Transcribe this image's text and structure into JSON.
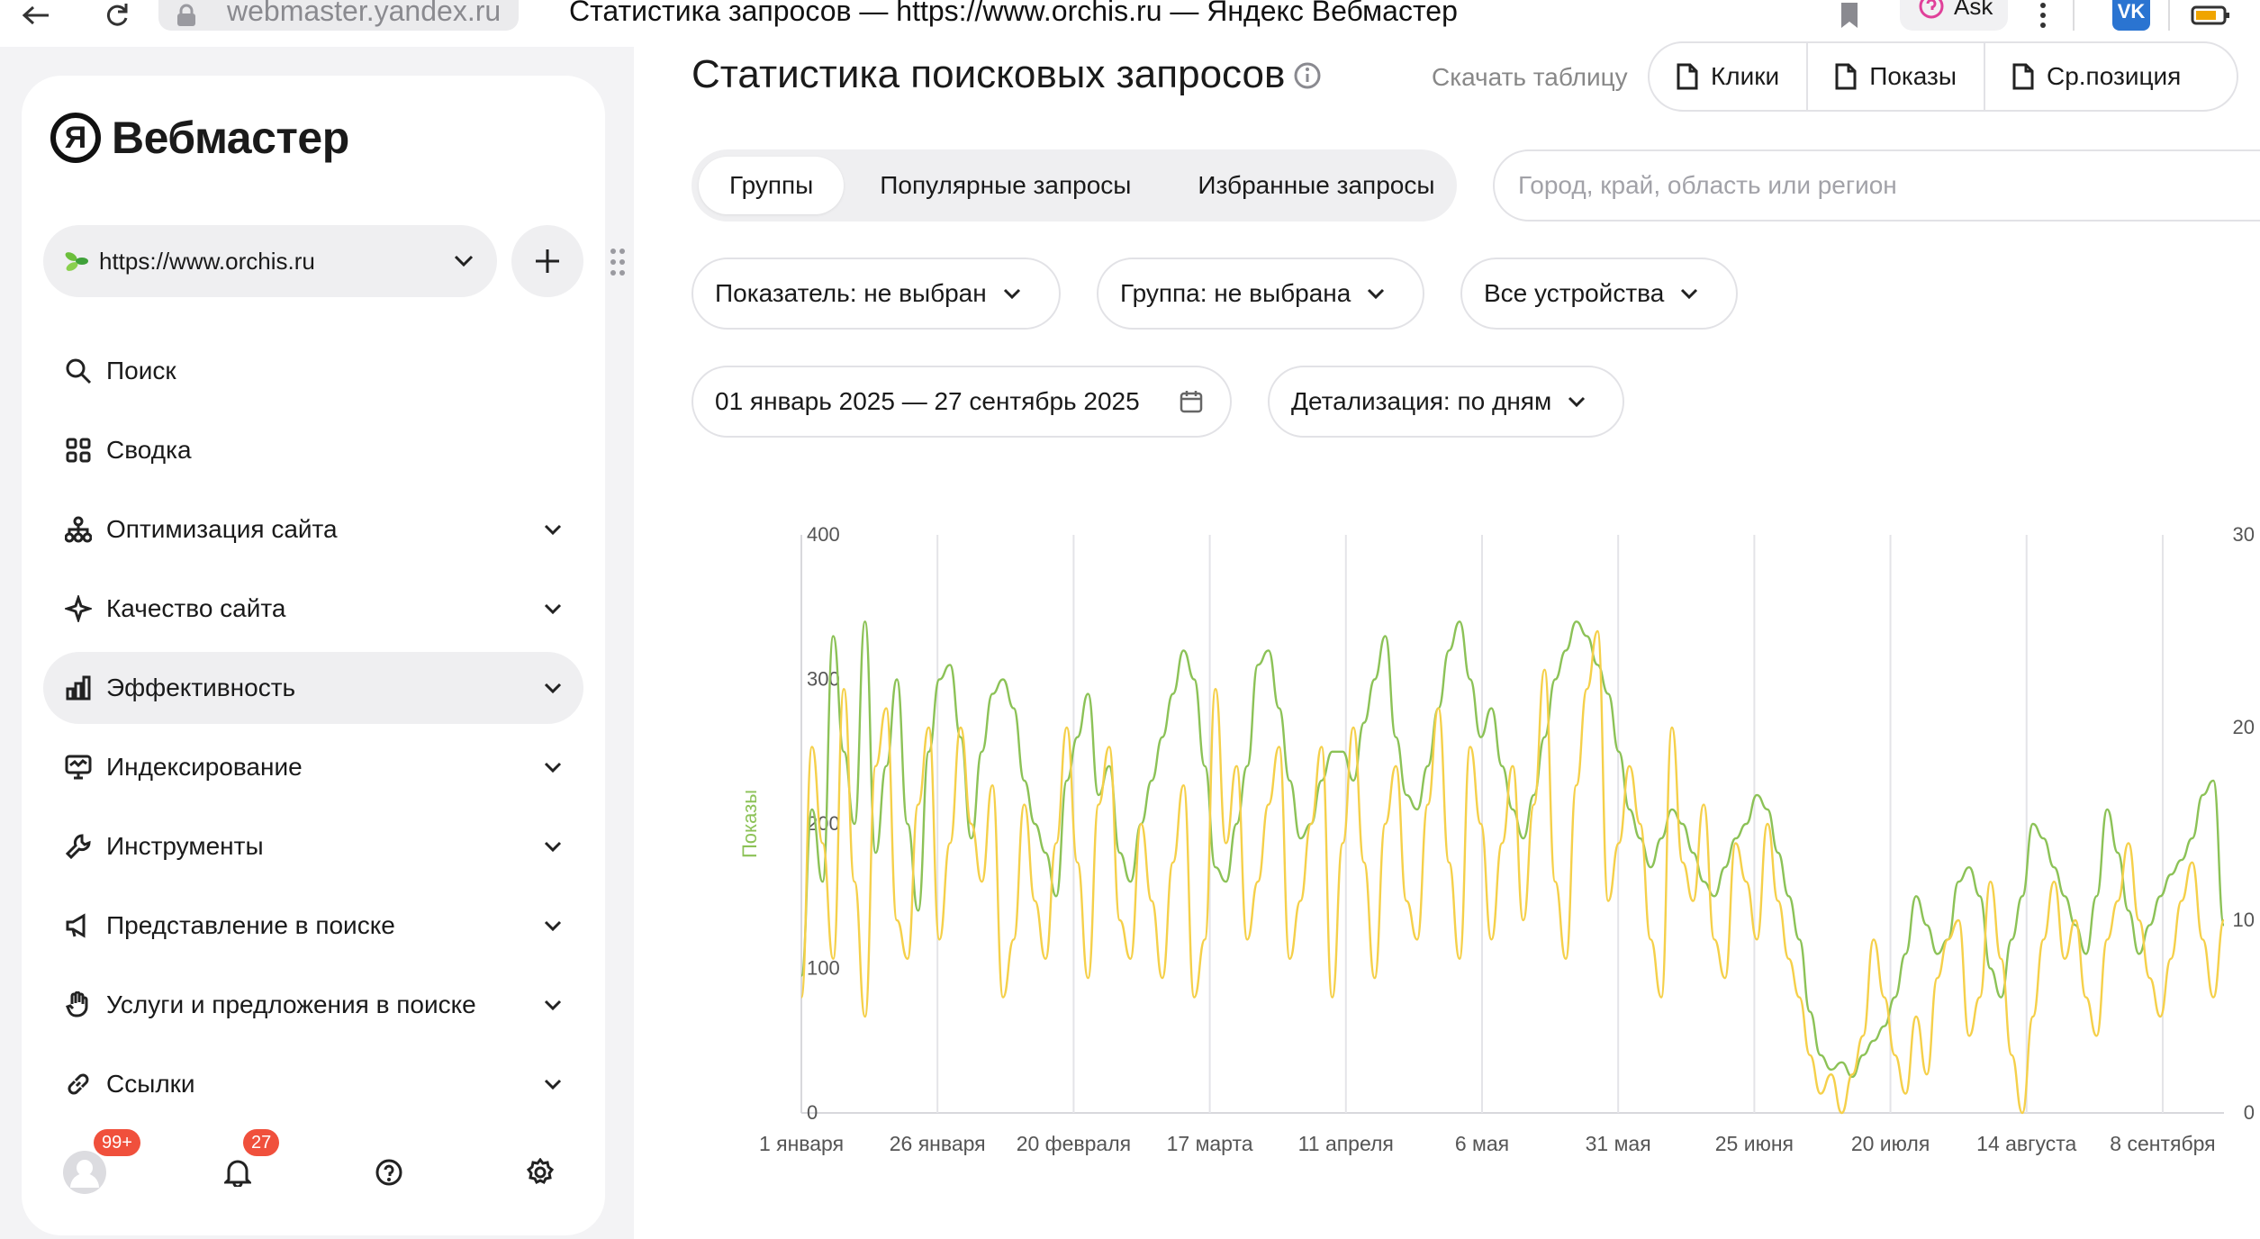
{
  "browser": {
    "url_host": "webmaster.yandex.ru",
    "title": "Статистика запросов — https://www.orchis.ru — Яндекс Вебмастер",
    "ask_label": "Ask",
    "vk_label": "VK"
  },
  "sidebar": {
    "logo_mark": "Я",
    "logo_text": "Вебмастер",
    "site_url": "https://www.orchis.ru",
    "items": [
      {
        "label": "Поиск",
        "icon": "search-icon"
      },
      {
        "label": "Сводка",
        "icon": "grid-icon"
      },
      {
        "label": "Оптимизация сайта",
        "icon": "sitemap-icon"
      },
      {
        "label": "Качество сайта",
        "icon": "sparkle-icon"
      },
      {
        "label": "Эффективность",
        "icon": "bar-chart-icon"
      },
      {
        "label": "Индексирование",
        "icon": "monitor-icon"
      },
      {
        "label": "Инструменты",
        "icon": "wrench-icon"
      },
      {
        "label": "Представление в поиске",
        "icon": "megaphone-icon"
      },
      {
        "label": "Услуги и предложения в поиске",
        "icon": "hand-icon"
      },
      {
        "label": "Ссылки",
        "icon": "link-icon"
      }
    ],
    "footer": {
      "profile_badge": "99+",
      "notifications_badge": "27"
    }
  },
  "main": {
    "title": "Статистика поисковых запросов",
    "download_label": "Скачать таблицу",
    "metric_tabs": [
      "Клики",
      "Показы",
      "Ср.позиция"
    ],
    "segment_tabs": [
      "Группы",
      "Популярные запросы",
      "Избранные запросы"
    ],
    "region_placeholder": "Город, край, область или регион",
    "filters": {
      "indicator": "Показатель: не выбран",
      "group": "Группа: не выбрана",
      "devices": "Все устройства",
      "date_range": "01 январь 2025 — 27 сентябрь 2025",
      "detail": "Детализация: по дням"
    }
  },
  "chart_data": {
    "type": "line",
    "ylabel": "Показы",
    "ylim": [
      0,
      400
    ],
    "y_ticks": [
      "0",
      "100",
      "200",
      "300",
      "400"
    ],
    "y2lim": [
      0,
      30
    ],
    "y2_ticks": [
      "0",
      "10",
      "20",
      "30"
    ],
    "x_ticks": [
      "1 января",
      "26 января",
      "20 февраля",
      "17 марта",
      "11 апреля",
      "6 мая",
      "31 мая",
      "25 июня",
      "20 июля",
      "14 августа",
      "8 сентября"
    ],
    "series": [
      {
        "axis": "left",
        "color": "#8cc257",
        "values": [
          95,
          210,
          160,
          330,
          250,
          200,
          340,
          180,
          240,
          300,
          200,
          140,
          250,
          300,
          310,
          260,
          190,
          250,
          290,
          300,
          280,
          230,
          200,
          180,
          150,
          230,
          260,
          290,
          220,
          240,
          180,
          160,
          200,
          230,
          260,
          290,
          320,
          300,
          240,
          170,
          160,
          200,
          240,
          310,
          320,
          280,
          230,
          190,
          200,
          230,
          250,
          250,
          230,
          270,
          300,
          330,
          260,
          220,
          210,
          240,
          280,
          320,
          340,
          300,
          260,
          280,
          240,
          210,
          190,
          220,
          260,
          300,
          320,
          340,
          330,
          310,
          290,
          250,
          210,
          190,
          170,
          190,
          210,
          200,
          180,
          160,
          150,
          170,
          190,
          200,
          220,
          210,
          180,
          150,
          120,
          70,
          40,
          30,
          35,
          25,
          40,
          50,
          60,
          80,
          110,
          150,
          130,
          110,
          120,
          160,
          170,
          150,
          100,
          80,
          120,
          150,
          200,
          190,
          170,
          150,
          130,
          110,
          150,
          210,
          180,
          140,
          110,
          130,
          150,
          165,
          175,
          190,
          220,
          230,
          130
        ]
      },
      {
        "axis": "right",
        "color": "#f5d04a",
        "values": [
          6,
          19,
          14,
          8,
          22,
          12,
          5,
          18,
          21,
          10,
          8,
          16,
          20,
          9,
          14,
          20,
          15,
          12,
          17,
          6,
          9,
          16,
          11,
          8,
          14,
          20,
          13,
          7,
          16,
          19,
          10,
          8,
          15,
          11,
          7,
          13,
          17,
          6,
          9,
          22,
          14,
          18,
          9,
          12,
          16,
          19,
          8,
          11,
          15,
          19,
          6,
          14,
          20,
          13,
          7,
          15,
          18,
          11,
          9,
          16,
          21,
          13,
          8,
          19,
          15,
          9,
          14,
          18,
          10,
          16,
          23,
          12,
          8,
          17,
          22,
          25,
          11,
          14,
          18,
          15,
          9,
          6,
          20,
          13,
          11,
          16,
          9,
          7,
          14,
          12,
          9,
          15,
          11,
          8,
          6,
          3,
          1,
          2,
          0,
          2,
          4,
          9,
          6,
          3,
          1,
          5,
          2,
          7,
          9,
          10,
          4,
          6,
          12,
          8,
          3,
          0,
          5,
          9,
          12,
          8,
          10,
          6,
          4,
          9,
          11,
          14,
          10,
          7,
          5,
          8,
          11,
          13,
          9,
          6,
          10
        ]
      }
    ]
  }
}
